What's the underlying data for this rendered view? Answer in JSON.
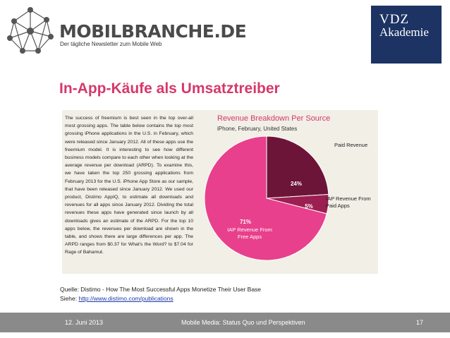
{
  "header": {
    "brand": "MOBILBRANCHE.DE",
    "tagline": "Der tägliche Newsletter zum Mobile Web",
    "vdz_line1": "VDZ",
    "vdz_line2": "Akademie"
  },
  "slide": {
    "title": "In-App-Käufe als Umsatztreiber",
    "excerpt": {
      "text": "The success of freemium is best seen in the top over-all most grossing apps. The table below contains the top most grossing iPhone applications in the U.S. in February, which were released since January 2012. All of these apps use the freemium model. It is interesting to see how different business models compare to each other when looking at the average revenue per download (ARPD). To examine this, we have taken the top 250 grossing applications from February 2013 for the U.S. iPhone App Store as our sample, that have been released since January 2012. We used our product, Distimo AppIQ, to estimate all downloads and revenues for all apps since January 2012. Dividing the total revenues these apps have generated since launch by all downloads gives an estimate of the ARPD. For the top 10 apps below, the revenues per download are shown in the table, and shows there are large differences per app. The ARPD ranges from $0.37 for What's the Word? to $7.04 for Rage of Bahamut."
    },
    "source_line": "Quelle: Distimo - How The Most Successful Apps Monetize Their User Base",
    "link_prefix": "Siehe: ",
    "link_text": "http://www.distimo.com/publications"
  },
  "chart_data": {
    "type": "pie",
    "title": "Revenue Breakdown Per Source",
    "subtitle": "iPhone, February, United States",
    "slices": [
      {
        "label": "Paid Revenue",
        "value": 24,
        "value_label": "24%",
        "color": "#6d1538"
      },
      {
        "label": "IAP Revenue From Paid Apps",
        "label_lines": [
          "IAP Revenue From",
          "Paid Apps"
        ],
        "value": 5,
        "value_label": "5%",
        "color": "#9c1f52"
      },
      {
        "label": "IAP Revenue From Free Apps",
        "label_lines": [
          "IAP Revenue From",
          "Free Apps"
        ],
        "value": 71,
        "value_label": "71%",
        "color": "#e8408c"
      }
    ]
  },
  "footer": {
    "date": "12. Juni 2013",
    "center": "Mobile Media: Status Quo und Perspektiven",
    "page": "17"
  }
}
